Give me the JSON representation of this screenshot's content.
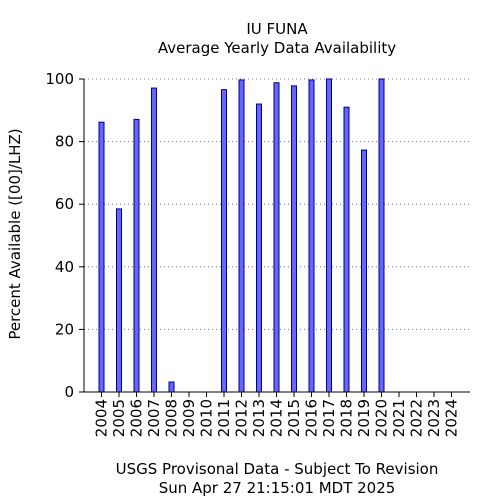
{
  "chart_data": {
    "type": "bar",
    "title": "IU FUNA",
    "subtitle": "Average Yearly Data Availability",
    "xlabel": "",
    "ylabel": "Percent Available ([00]/LHZ)",
    "footer_line1": "USGS Provisonal Data - Subject To Revision",
    "footer_line2": "Sun Apr 27 21:15:01 MDT 2025",
    "ylim": [
      0,
      100
    ],
    "yticks": [
      0,
      20,
      40,
      60,
      80,
      100
    ],
    "grid": true,
    "bar_color": "#6666ff",
    "bar_edge_color": "#000080",
    "categories": [
      "2004",
      "2005",
      "2006",
      "2007",
      "2008",
      "2009",
      "2010",
      "2011",
      "2012",
      "2013",
      "2014",
      "2015",
      "2016",
      "2017",
      "2018",
      "2019",
      "2020",
      "2021",
      "2022",
      "2023",
      "2024"
    ],
    "values": [
      86.2,
      58.5,
      87.1,
      97.1,
      3.2,
      0,
      0,
      96.6,
      99.7,
      92.0,
      98.8,
      97.8,
      99.7,
      100,
      91.0,
      77.3,
      100,
      0,
      0,
      0,
      0
    ]
  }
}
